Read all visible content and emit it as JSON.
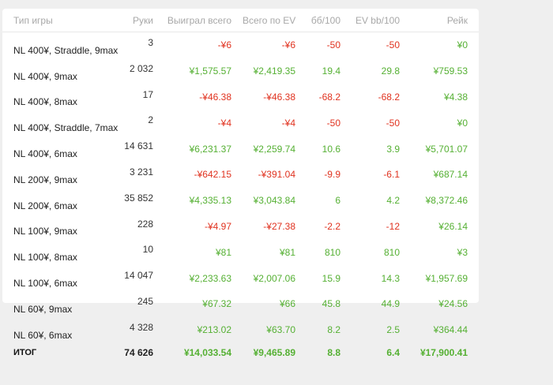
{
  "colors": {
    "positive": "#55b033",
    "negative": "#e0321f",
    "header": "#a8a8a8",
    "background": "#efefef",
    "card": "#ffffff"
  },
  "headers": {
    "game_type": "Тип игры",
    "hands": "Руки",
    "won_total": "Выиграл всего",
    "ev_total": "Всего по EV",
    "bb100": "бб/100",
    "ev_bb100": "EV bb/100",
    "rake": "Рейк"
  },
  "rows": [
    {
      "game": "NL 400¥, Straddle, 9max",
      "hands": "3",
      "won": "-¥6",
      "ev": "-¥6",
      "bb": "-50",
      "evbb": "-50",
      "rake": "¥0"
    },
    {
      "game": "NL 400¥, 9max",
      "hands": "2 032",
      "won": "¥1,575.57",
      "ev": "¥2,419.35",
      "bb": "19.4",
      "evbb": "29.8",
      "rake": "¥759.53"
    },
    {
      "game": "NL 400¥, 8max",
      "hands": "17",
      "won": "-¥46.38",
      "ev": "-¥46.38",
      "bb": "-68.2",
      "evbb": "-68.2",
      "rake": "¥4.38"
    },
    {
      "game": "NL 400¥, Straddle, 7max",
      "hands": "2",
      "won": "-¥4",
      "ev": "-¥4",
      "bb": "-50",
      "evbb": "-50",
      "rake": "¥0"
    },
    {
      "game": "NL 400¥, 6max",
      "hands": "14 631",
      "won": "¥6,231.37",
      "ev": "¥2,259.74",
      "bb": "10.6",
      "evbb": "3.9",
      "rake": "¥5,701.07"
    },
    {
      "game": "NL 200¥, 9max",
      "hands": "3 231",
      "won": "-¥642.15",
      "ev": "-¥391.04",
      "bb": "-9.9",
      "evbb": "-6.1",
      "rake": "¥687.14"
    },
    {
      "game": "NL 200¥, 6max",
      "hands": "35 852",
      "won": "¥4,335.13",
      "ev": "¥3,043.84",
      "bb": "6",
      "evbb": "4.2",
      "rake": "¥8,372.46"
    },
    {
      "game": "NL 100¥, 9max",
      "hands": "228",
      "won": "-¥4.97",
      "ev": "-¥27.38",
      "bb": "-2.2",
      "evbb": "-12",
      "rake": "¥26.14"
    },
    {
      "game": "NL 100¥, 8max",
      "hands": "10",
      "won": "¥81",
      "ev": "¥81",
      "bb": "810",
      "evbb": "810",
      "rake": "¥3"
    },
    {
      "game": "NL 100¥, 6max",
      "hands": "14 047",
      "won": "¥2,233.63",
      "ev": "¥2,007.06",
      "bb": "15.9",
      "evbb": "14.3",
      "rake": "¥1,957.69"
    },
    {
      "game": "NL 60¥, 9max",
      "hands": "245",
      "won": "¥67.32",
      "ev": "¥66",
      "bb": "45.8",
      "evbb": "44.9",
      "rake": "¥24.56"
    },
    {
      "game": "NL 60¥, 6max",
      "hands": "4 328",
      "won": "¥213.02",
      "ev": "¥63.70",
      "bb": "8.2",
      "evbb": "2.5",
      "rake": "¥364.44"
    }
  ],
  "total": {
    "label": "ИТОГ",
    "hands": "74 626",
    "won": "¥14,033.54",
    "ev": "¥9,465.89",
    "bb": "8.8",
    "evbb": "6.4",
    "rake": "¥17,900.41"
  }
}
